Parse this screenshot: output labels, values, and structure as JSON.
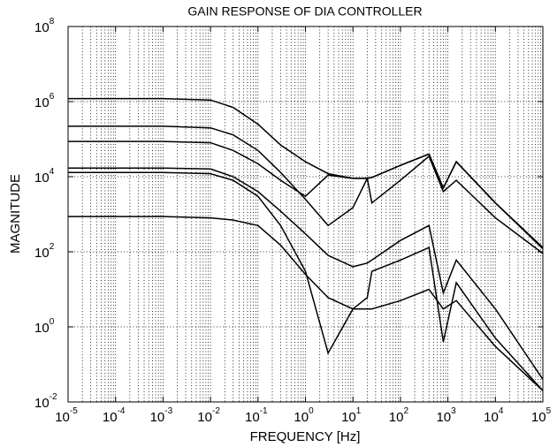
{
  "chart_data": {
    "type": "line",
    "title": "GAIN RESPONSE OF DIA CONTROLLER",
    "x_label": "FREQUENCY [Hz]",
    "y_label": "MAGNITUDE",
    "x_scale": "log",
    "y_scale": "log",
    "grid": true,
    "xlim": [
      1e-05,
      100000
    ],
    "ylim": [
      0.01,
      100000000
    ],
    "xticks": [
      {
        "value": 1e-05,
        "label": "10",
        "exponent": "-5"
      },
      {
        "value": 0.0001,
        "label": "10",
        "exponent": "-4"
      },
      {
        "value": 0.001,
        "label": "10",
        "exponent": "-3"
      },
      {
        "value": 0.01,
        "label": "10",
        "exponent": "-2"
      },
      {
        "value": 0.1,
        "label": "10",
        "exponent": "-1"
      },
      {
        "value": 1,
        "label": "10",
        "exponent": "0"
      },
      {
        "value": 10,
        "label": "10",
        "exponent": "1"
      },
      {
        "value": 100,
        "label": "10",
        "exponent": "2"
      },
      {
        "value": 1000,
        "label": "10",
        "exponent": "3"
      },
      {
        "value": 10000,
        "label": "10",
        "exponent": "4"
      },
      {
        "value": 100000,
        "label": "10",
        "exponent": "5"
      }
    ],
    "yticks": [
      {
        "value": 0.01,
        "label": "10",
        "exponent": "-2"
      },
      {
        "value": 1,
        "label": "10",
        "exponent": "0"
      },
      {
        "value": 100,
        "label": "10",
        "exponent": "2"
      },
      {
        "value": 10000,
        "label": "10",
        "exponent": "4"
      },
      {
        "value": 1000000,
        "label": "10",
        "exponent": "6"
      },
      {
        "value": 100000000,
        "label": "10",
        "exponent": "8"
      }
    ],
    "x": [
      1e-05,
      0.001,
      0.01,
      0.03,
      0.1,
      0.3,
      1,
      3,
      10,
      20,
      25,
      100,
      400,
      800,
      1500,
      10000,
      100000
    ],
    "series": [
      {
        "color": "#000000",
        "values": [
          1200000,
          1200000,
          1100000,
          700000,
          250000,
          70000,
          25000,
          12000,
          9000,
          9000,
          9500,
          20000,
          40000,
          5000,
          25000,
          2000,
          130
        ]
      },
      {
        "color": "#000000",
        "values": [
          220000,
          220000,
          200000,
          130000,
          50000,
          13000,
          2500,
          500,
          1500,
          9000,
          2000,
          8000,
          35000,
          4000,
          8000,
          800,
          90
        ]
      },
      {
        "color": "#000000",
        "values": [
          87000,
          87000,
          80000,
          50000,
          22000,
          8000,
          3000,
          11000,
          9000,
          9000,
          9500,
          20000,
          40000,
          5000,
          25000,
          2000,
          120
        ]
      },
      {
        "color": "#000000",
        "values": [
          17000,
          17000,
          16000,
          10000,
          4000,
          1200,
          300,
          80,
          40,
          50,
          60,
          200,
          500,
          8,
          60,
          3,
          0.04
        ]
      },
      {
        "color": "#000000",
        "values": [
          13000,
          13000,
          12000,
          8000,
          3000,
          500,
          30,
          0.2,
          3,
          6,
          30,
          60,
          130,
          0.4,
          15,
          0.5,
          0.02
        ]
      },
      {
        "color": "#000000",
        "values": [
          870,
          870,
          800,
          700,
          500,
          150,
          25,
          6,
          3,
          3,
          3,
          5,
          10,
          3,
          5,
          0.3,
          0.02
        ]
      }
    ]
  }
}
